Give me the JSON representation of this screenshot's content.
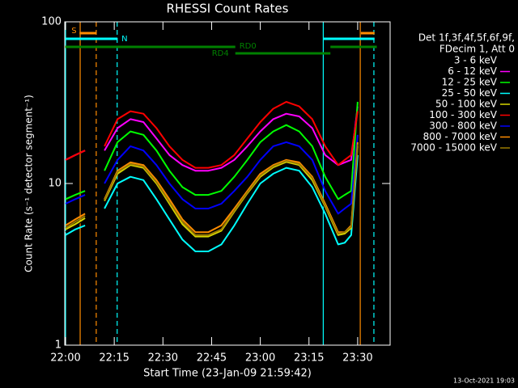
{
  "chart_data": {
    "type": "line",
    "title": "RHESSI Count Rates",
    "xlabel": "Start Time (23-Jan-09 21:59:42)",
    "ylabel": "Count Rate (s⁻¹ detector segment⁻¹)",
    "legend_header": [
      "Det 1f,3f,4f,5f,6f,9f,",
      "FDecim 1, Att 0"
    ],
    "footer": "13-Oct-2021 19:03",
    "log_y": true,
    "xlim": [
      -0.25,
      100
    ],
    "ylim": [
      1,
      100
    ],
    "yticks": [
      1,
      10,
      100
    ],
    "xticks": [
      {
        "value": 0,
        "label": "22:00"
      },
      {
        "value": 15,
        "label": "22:15"
      },
      {
        "value": 30,
        "label": "22:30"
      },
      {
        "value": 45,
        "label": "22:45"
      },
      {
        "value": 60,
        "label": "23:00"
      },
      {
        "value": 75,
        "label": "23:15"
      },
      {
        "value": 90,
        "label": "23:30"
      }
    ],
    "x": [
      0,
      3,
      6,
      9,
      12,
      16,
      20,
      24,
      28,
      32,
      36,
      40,
      44,
      48,
      52,
      56,
      60,
      64,
      68,
      72,
      76,
      80,
      84,
      86,
      88,
      90
    ],
    "series": [
      {
        "name": "3 - 6 keV",
        "color": "#000000",
        "values": [
          5,
          5.5,
          6,
          null,
          7.5,
          10.5,
          11.5,
          11,
          8.5,
          6.5,
          5,
          4.2,
          4.2,
          4.6,
          6,
          8,
          10.5,
          12,
          13,
          12.5,
          10,
          7,
          4.5,
          4.6,
          5,
          16
        ]
      },
      {
        "name": "6 - 12 keV",
        "color": "#ff00ff",
        "values": [
          14,
          15,
          16,
          null,
          16,
          22,
          25,
          24,
          19,
          15,
          13,
          12,
          12,
          12.5,
          14,
          17,
          21,
          25,
          27,
          26,
          22,
          15,
          13,
          13.5,
          14,
          30
        ]
      },
      {
        "name": "12 - 25 keV",
        "color": "#00ff00",
        "values": [
          8,
          8.5,
          9,
          null,
          12,
          18,
          21,
          20,
          16,
          12,
          9.5,
          8.5,
          8.5,
          9,
          11,
          14,
          18,
          21,
          23,
          21,
          17,
          11,
          8,
          8.5,
          9,
          32
        ]
      },
      {
        "name": "25 - 50 keV",
        "color": "#00ffff",
        "values": [
          4.8,
          5.2,
          5.5,
          null,
          7,
          10,
          11,
          10.5,
          8,
          6,
          4.5,
          3.8,
          3.8,
          4.2,
          5.5,
          7.5,
          10,
          11.5,
          12.5,
          12,
          9.5,
          6.5,
          4.2,
          4.3,
          4.8,
          15
        ]
      },
      {
        "name": "50 - 100 keV",
        "color": "#d8d800",
        "values": [
          5.2,
          5.6,
          6.1,
          null,
          7.8,
          11.5,
          13,
          12.5,
          10,
          7.5,
          5.6,
          4.7,
          4.7,
          5.1,
          6.7,
          8.7,
          11,
          12.6,
          13.6,
          13,
          10.5,
          7.2,
          4.8,
          4.9,
          5.3,
          17
        ]
      },
      {
        "name": "100 - 300 keV",
        "color": "#ff0000",
        "values": [
          14,
          15,
          16,
          null,
          17,
          25,
          28,
          27,
          22,
          17,
          14,
          12.5,
          12.5,
          13,
          15,
          19,
          24,
          29,
          32,
          30,
          25,
          17,
          13,
          14,
          15,
          28
        ]
      },
      {
        "name": "300 - 800 keV",
        "color": "#0000ff",
        "values": [
          7.5,
          8,
          8.5,
          null,
          10,
          14,
          17,
          16,
          13,
          10,
          8,
          7,
          7,
          7.5,
          9,
          11,
          14,
          17,
          18,
          17,
          14,
          9,
          6.5,
          7,
          7.5,
          20
        ]
      },
      {
        "name": "800 - 7000 keV",
        "color": "#ff8c00",
        "values": [
          5.5,
          6,
          6.5,
          null,
          8,
          12,
          13.5,
          13,
          10.5,
          8,
          6,
          5,
          5,
          5.5,
          7,
          9,
          11.5,
          13,
          14,
          13.5,
          11,
          7.5,
          5,
          5,
          5.5,
          18
        ]
      },
      {
        "name": "7000 - 15000 keV",
        "color": "#9a7a00",
        "values": [
          5.3,
          5.8,
          6.3,
          null,
          7.9,
          11.8,
          13.2,
          12.7,
          10.2,
          7.7,
          5.8,
          4.8,
          4.8,
          5.2,
          6.8,
          8.8,
          11.2,
          12.8,
          13.8,
          13.2,
          10.8,
          7.3,
          4.9,
          5,
          5.4,
          17.5
        ]
      }
    ],
    "vlines": [
      {
        "x": 0,
        "color": "#00ffff",
        "dashed": false
      },
      {
        "x": 4.5,
        "color": "#ff8c00",
        "dashed": false
      },
      {
        "x": 9.45,
        "color": "#ff8c00",
        "dashed": true
      },
      {
        "x": 15.9,
        "color": "#00ffff",
        "dashed": true
      },
      {
        "x": 79.4,
        "color": "#00ffff",
        "dashed": false
      },
      {
        "x": 90.8,
        "color": "#ff8c00",
        "dashed": false
      },
      {
        "x": 95,
        "color": "#00ffff",
        "dashed": true
      }
    ],
    "flags": [
      {
        "label": "S",
        "color": "#ff8c00",
        "segments": [
          [
            4.3,
            9.5
          ],
          [
            91,
            95.2
          ]
        ]
      },
      {
        "label": "N",
        "color": "#00ffff",
        "segments": [
          [
            -0.25,
            16
          ],
          [
            79.4,
            95.2
          ]
        ]
      },
      {
        "label": "RD0",
        "color": "#008000",
        "segments": [
          [
            -0.25,
            52.3
          ],
          [
            81.6,
            95.9
          ]
        ]
      },
      {
        "label": "RD4",
        "color": "#008000",
        "segments": [
          [
            52.3,
            81.6
          ]
        ]
      }
    ]
  }
}
